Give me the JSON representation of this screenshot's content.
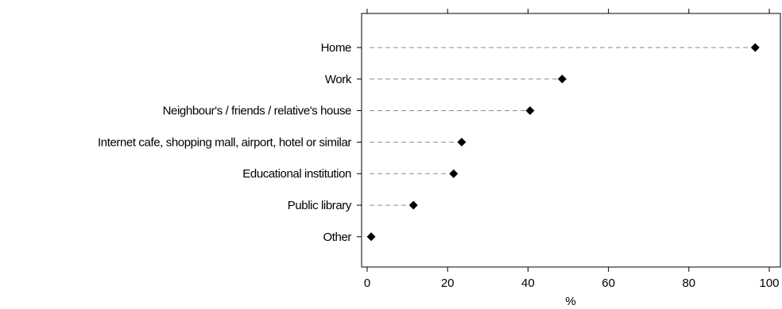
{
  "chart_data": {
    "type": "dot",
    "title": "",
    "xlabel": "%",
    "ylabel": "",
    "xlim": [
      0,
      100
    ],
    "x_ticks": [
      0,
      20,
      40,
      60,
      80,
      100
    ],
    "x_tick_labels": [
      "0",
      "20",
      "40",
      "60",
      "80",
      "100"
    ],
    "categories": [
      "Home",
      "Work",
      "Neighbour's / friends / relative's house",
      "Internet cafe, shopping mall, airport, hotel or similar",
      "Educational institution",
      "Public library",
      "Other"
    ],
    "values": [
      96.5,
      48.5,
      40.5,
      23.5,
      21.5,
      11.5,
      1
    ],
    "grid": false,
    "legend": "none",
    "colors": {
      "marker": "#000000",
      "leader_line": "#888888",
      "axis": "#000000"
    }
  }
}
